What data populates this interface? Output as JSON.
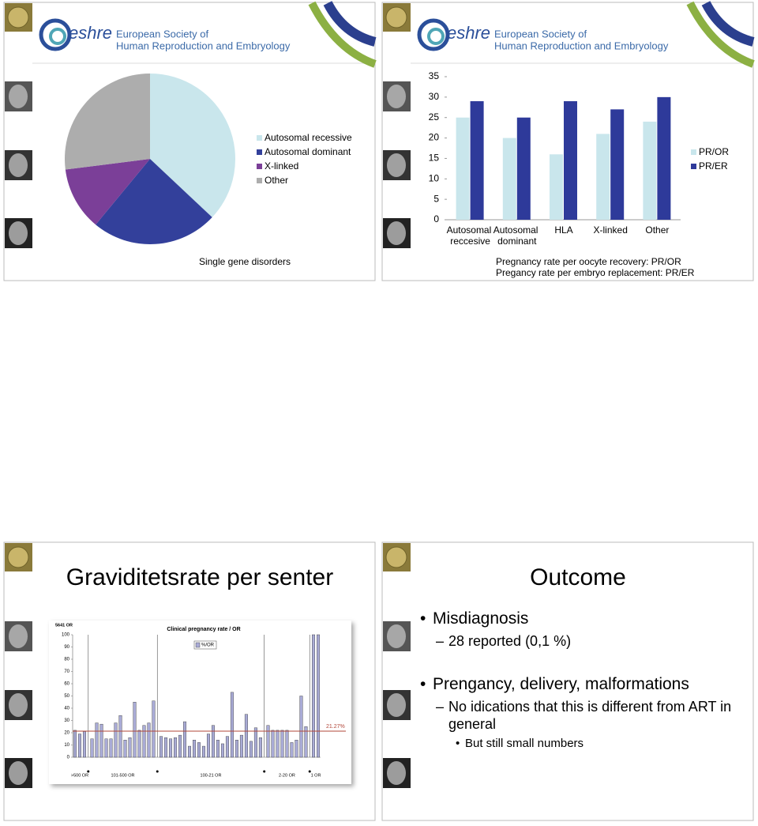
{
  "logo": {
    "mark": "eshre",
    "line1": "European Society of",
    "line2": "Human Reproduction and Embryology"
  },
  "chart_data": [
    {
      "type": "pie",
      "title": "Single gene disorders",
      "categories": [
        "Autosomal recessive",
        "Autosomal dominant",
        "X-linked",
        "Other"
      ],
      "values": [
        37,
        24,
        12,
        27
      ],
      "colors": [
        "#c9e6ec",
        "#33409b",
        "#7b3f98",
        "#adadad"
      ]
    },
    {
      "type": "bar",
      "categories": [
        "Autosomal reccesive",
        "Autosomal dominant",
        "HLA",
        "X-linked",
        "Other"
      ],
      "series": [
        {
          "name": "PR/OR",
          "color": "#c9e6ec",
          "values": [
            25,
            20,
            16,
            21,
            24
          ]
        },
        {
          "name": "PR/ER",
          "color": "#2e3a9a",
          "values": [
            29,
            25,
            29,
            27,
            30
          ]
        }
      ],
      "ylim": [
        0,
        35
      ],
      "yticks": [
        0,
        5,
        10,
        15,
        20,
        25,
        30,
        35
      ],
      "notes": [
        "Pregnancy rate per oocyte recovery: PR/OR",
        "Pregancy rate per embryo replacement: PR/ER"
      ]
    },
    {
      "type": "grouped-bar",
      "title": "Clinical pregnancy rate / OR",
      "legend": "%/OR",
      "y_note": "5641 OR",
      "color": "#a9abd6",
      "ylim": [
        0,
        100
      ],
      "yticks": [
        0,
        10,
        20,
        30,
        40,
        50,
        60,
        70,
        80,
        90,
        100
      ],
      "reference": {
        "value": 21.27,
        "label": "21.27%"
      },
      "groups": [
        {
          "label": ">500 OR",
          "values": [
            22,
            19,
            21
          ]
        },
        {
          "label": "101-500 OR",
          "values": [
            15,
            28,
            27,
            15,
            15,
            28,
            34,
            14,
            16,
            45,
            22,
            26,
            28,
            46
          ]
        },
        {
          "label": "100-21 OR",
          "values": [
            17,
            16,
            15,
            16,
            18,
            29,
            9,
            14,
            12,
            9,
            19,
            26,
            14,
            11,
            17,
            53,
            14,
            18,
            35,
            13,
            24,
            16
          ]
        },
        {
          "label": "2-20 OR",
          "values": [
            26,
            22,
            22,
            22,
            22,
            12,
            14,
            50,
            25
          ]
        },
        {
          "label": "1 OR",
          "values": [
            100,
            100
          ]
        }
      ]
    }
  ],
  "slides": [
    {
      "title": "Graviditetsrate per senter"
    },
    {
      "title": "Outcome",
      "bullets": [
        {
          "text": "Misdiagnosis",
          "sub": [
            {
              "text": "28 reported (0,1 %)"
            }
          ]
        },
        {
          "text": "Prengancy, delivery, malformations",
          "sub": [
            {
              "text": "No idications that this is different from ART in general",
              "sub": [
                "But still small numbers"
              ]
            }
          ]
        }
      ]
    }
  ]
}
